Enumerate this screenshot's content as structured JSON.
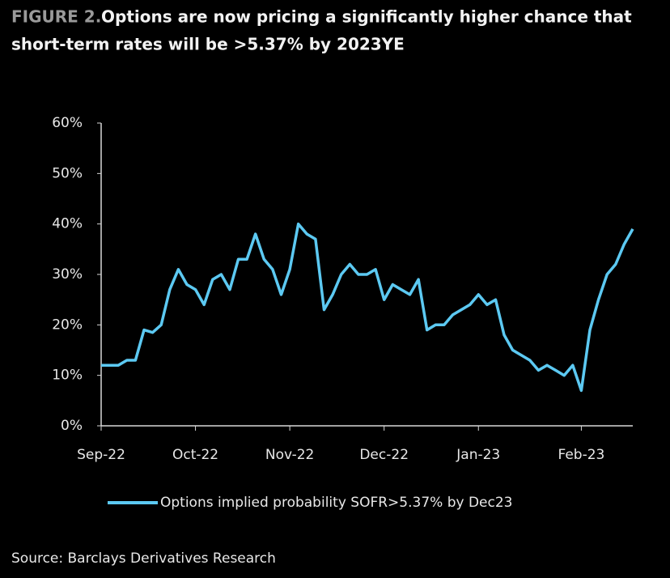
{
  "chart_data": {
    "type": "line",
    "figure_label": "FIGURE 2.",
    "title_line1": "Options are now pricing a significantly higher chance that",
    "title_line2": "short-term rates will be >5.37% by 2023YE",
    "source": "Source: Barclays Derivatives Research",
    "categories": [
      "Sep-22",
      null,
      null,
      null,
      null,
      null,
      null,
      null,
      null,
      null,
      null,
      "Oct-22",
      null,
      null,
      null,
      null,
      null,
      null,
      null,
      null,
      null,
      null,
      "Nov-22",
      null,
      null,
      null,
      null,
      null,
      null,
      null,
      null,
      null,
      null,
      "Dec-22",
      null,
      null,
      null,
      null,
      null,
      null,
      null,
      null,
      null,
      null,
      "Jan-23",
      null,
      null,
      null,
      null,
      null,
      null,
      null,
      null,
      null,
      null,
      null,
      "Feb-23",
      null,
      null,
      null,
      null,
      null,
      null
    ],
    "series": [
      {
        "name": "Options implied probability SOFR>5.37% by Dec23",
        "color": "#5cc9f2",
        "values": [
          12,
          12,
          12,
          13,
          13,
          19,
          18.5,
          20,
          27,
          31,
          28,
          27,
          24,
          29,
          30,
          27,
          33,
          33,
          38,
          33,
          31,
          26,
          31,
          40,
          38,
          37,
          23,
          26,
          30,
          32,
          30,
          30,
          31,
          25,
          28,
          27,
          26,
          29,
          19,
          20,
          20,
          22,
          23,
          24,
          26,
          24,
          25,
          18,
          15,
          14,
          13,
          11,
          12,
          11,
          10,
          12,
          7,
          19,
          25,
          30,
          32,
          36,
          39
        ]
      }
    ],
    "ylim": [
      0,
      60
    ],
    "yticks": [
      {
        "value": 0,
        "label": "0%"
      },
      {
        "value": 10,
        "label": "10%"
      },
      {
        "value": 20,
        "label": "20%"
      },
      {
        "value": 30,
        "label": "30%"
      },
      {
        "value": 40,
        "label": "40%"
      },
      {
        "value": 50,
        "label": "50%"
      },
      {
        "value": 60,
        "label": "60%"
      }
    ],
    "grid": false,
    "legend": "bottom"
  }
}
